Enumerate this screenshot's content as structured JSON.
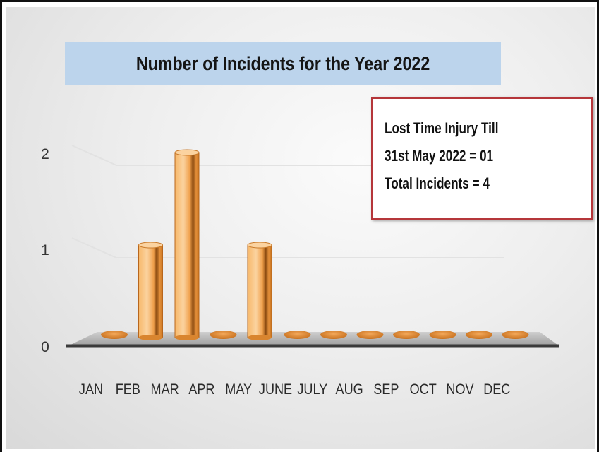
{
  "chart_data": {
    "type": "bar",
    "title": "Number of Incidents for the Year 2022",
    "categories": [
      "JAN",
      "FEB",
      "MAR",
      "APR",
      "MAY",
      "JUNE",
      "JULY",
      "AUG",
      "SEP",
      "OCT",
      "NOV",
      "DEC"
    ],
    "values": [
      0,
      1,
      2,
      0,
      1,
      0,
      0,
      0,
      0,
      0,
      0,
      0
    ],
    "y_ticks": [
      "0",
      "1",
      "2"
    ],
    "ylim": [
      0,
      2
    ],
    "grid": true,
    "colors": {
      "bar": "#f0a04b",
      "bar_dark": "#a85a12",
      "axis_line": "#c0392b",
      "floor": "#555555"
    }
  },
  "note_box": {
    "lines": [
      "Lost Time Injury Till",
      "31st May 2022 = 01",
      "Total Incidents = 4"
    ],
    "border_color": "#b5363a"
  }
}
